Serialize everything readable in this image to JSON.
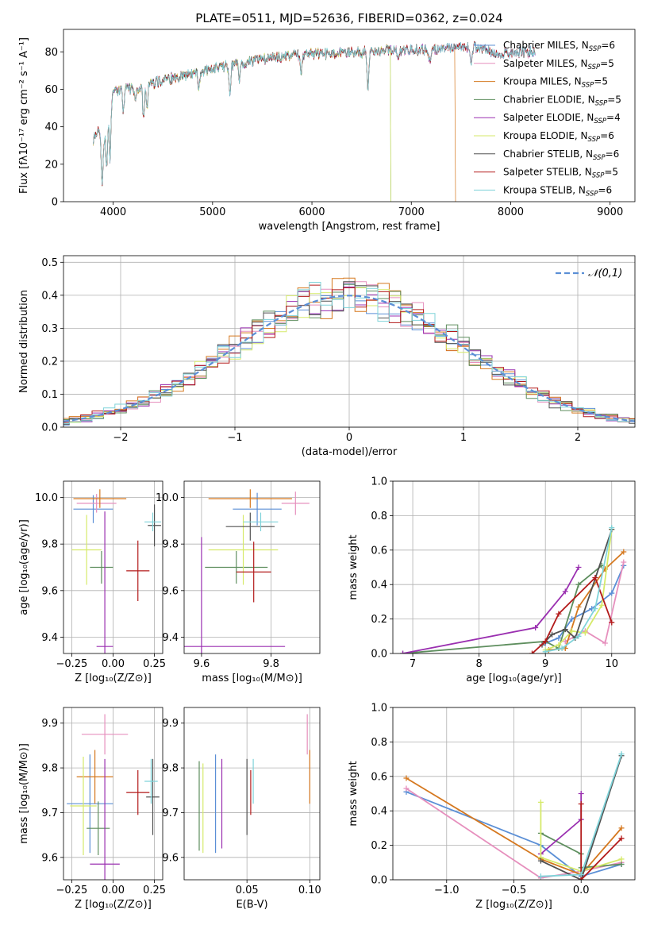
{
  "figure_title": "PLATE=0511, MJD=52636, FIBERID=0362, z=0.024",
  "colors": {
    "Chabrier MILES": "#5b8fd6",
    "Salpeter MILES": "#e68fbd",
    "Kroupa MILES": "#d5781f",
    "Chabrier ELODIE": "#5e8e5e",
    "Salpeter ELODIE": "#9a2fb0",
    "Kroupa ELODIE": "#d6ea6a",
    "Chabrier STELIB": "#505050",
    "Salpeter STELIB": "#b31a1a",
    "Kroupa STELIB": "#7fd3d9"
  },
  "chart_data": [
    {
      "id": "spectrum",
      "type": "line",
      "title": "PLATE=0511, MJD=52636, FIBERID=0362, z=0.024",
      "xlabel": "wavelength [Angstrom, rest frame]",
      "ylabel": "Flux [fλ10⁻¹⁷ erg cm⁻² s⁻¹ A⁻¹]",
      "xlim": [
        3500,
        9250
      ],
      "ylim": [
        0,
        92
      ],
      "xticks": [
        4000,
        5000,
        6000,
        7000,
        8000,
        9000
      ],
      "yticks": [
        0,
        20,
        40,
        60,
        80
      ],
      "grid": false,
      "legend_position": "right",
      "legend": [
        {
          "label": "Chabrier MILES, N",
          "sub": "SSP",
          "n": "=6"
        },
        {
          "label": "Salpeter MILES, N",
          "sub": "SSP",
          "n": "=5"
        },
        {
          "label": "Kroupa MILES, N",
          "sub": "SSP",
          "n": "=5"
        },
        {
          "label": "Chabrier ELODIE, N",
          "sub": "SSP",
          "n": "=5"
        },
        {
          "label": "Salpeter ELODIE, N",
          "sub": "SSP",
          "n": "=4"
        },
        {
          "label": "Kroupa ELODIE, N",
          "sub": "SSP",
          "n": "=6"
        },
        {
          "label": "Chabrier STELIB, N",
          "sub": "SSP",
          "n": "=6"
        },
        {
          "label": "Salpeter STELIB, N",
          "sub": "SSP",
          "n": "=5"
        },
        {
          "label": "Kroupa STELIB, N",
          "sub": "SSP",
          "n": "=6"
        }
      ],
      "continuum": {
        "x": [
          3800,
          3850,
          3900,
          3950,
          4000,
          4100,
          4200,
          4300,
          4400,
          4500,
          4700,
          4900,
          5000,
          5200,
          5400,
          5600,
          5800,
          6000,
          6200,
          6400,
          6600,
          6800,
          7000,
          7200,
          7400,
          7600,
          7800,
          8000,
          8200
        ],
        "y": [
          33,
          38,
          30,
          48,
          58,
          61,
          60,
          62,
          63,
          65,
          67,
          70,
          71,
          73,
          75,
          77,
          78,
          79,
          79,
          80,
          80,
          81,
          81,
          81,
          82,
          83,
          80,
          79,
          80
        ]
      },
      "absorption_lines": {
        "x": [
          3890,
          3934,
          3968,
          4102,
          4226,
          4305,
          4340,
          4861,
          5175,
          5270,
          5890,
          6563,
          6867,
          7186,
          7600
        ],
        "y": [
          10,
          20,
          22,
          48,
          55,
          44,
          50,
          60,
          55,
          66,
          68,
          60,
          75,
          76,
          74
        ]
      }
    },
    {
      "id": "residuals",
      "type": "histogram",
      "xlabel": "(data-model)/error",
      "ylabel": "Normed distribution",
      "xlim": [
        -2.5,
        2.5
      ],
      "ylim": [
        0,
        0.52
      ],
      "xticks": [
        -2,
        -1,
        0,
        1,
        2
      ],
      "yticks": [
        0.0,
        0.1,
        0.2,
        0.3,
        0.4,
        0.5
      ],
      "grid": true,
      "bin_width": 0.1,
      "legend_position": "top-right",
      "reference_curve": {
        "label": "𝒩(0,1)",
        "mean": 0,
        "sigma": 1
      }
    },
    {
      "id": "age-vs-Z",
      "type": "errorbar",
      "xlabel": "Z [log₁₀(Z/Z⊙)]",
      "ylabel": "age  [log₁₀(age/yr)]",
      "xlim": [
        -0.3,
        0.3
      ],
      "ylim": [
        9.33,
        10.07
      ],
      "xticks": [
        -0.25,
        0.0,
        0.25
      ],
      "xticklabels": [
        "−0.25",
        "0.00",
        "0.25"
      ],
      "yticks": [
        9.4,
        9.6,
        9.8,
        10.0
      ],
      "grid": true,
      "points": [
        {
          "model": "Chabrier MILES",
          "x": -0.12,
          "xerr": 0.12,
          "y": 9.95,
          "yerr": 0.06
        },
        {
          "model": "Salpeter MILES",
          "x": -0.1,
          "xerr": 0.12,
          "y": 9.975,
          "yerr": 0.04
        },
        {
          "model": "Kroupa MILES",
          "x": -0.08,
          "xerr": 0.16,
          "y": 9.995,
          "yerr": 0.04
        },
        {
          "model": "Chabrier ELODIE",
          "x": -0.07,
          "xerr": 0.07,
          "y": 9.7,
          "yerr": 0.07
        },
        {
          "model": "Salpeter ELODIE",
          "x": -0.05,
          "xerr": 0.05,
          "y": 9.36,
          "yerr": 0.58
        },
        {
          "model": "Kroupa ELODIE",
          "x": -0.16,
          "xerr": 0.09,
          "y": 9.775,
          "yerr": 0.15
        },
        {
          "model": "Chabrier STELIB",
          "x": 0.25,
          "xerr": 0.04,
          "y": 9.88,
          "yerr": 0.09
        },
        {
          "model": "Salpeter STELIB",
          "x": 0.15,
          "xerr": 0.07,
          "y": 9.685,
          "yerr": 0.13
        },
        {
          "model": "Kroupa STELIB",
          "x": 0.24,
          "xerr": 0.05,
          "y": 9.895,
          "yerr": 0.04
        }
      ]
    },
    {
      "id": "age-vs-mass",
      "type": "errorbar",
      "xlabel": "mass [log₁₀(M/M⊙)]",
      "xlim": [
        9.55,
        9.94
      ],
      "ylim": [
        9.33,
        10.07
      ],
      "xticks": [
        9.6,
        9.8
      ],
      "yticks": [
        9.4,
        9.6,
        9.8,
        10.0
      ],
      "grid": true,
      "points": [
        {
          "model": "Chabrier MILES",
          "x": 9.76,
          "xerr": 0.07,
          "y": 9.95,
          "yerr": 0.07
        },
        {
          "model": "Salpeter MILES",
          "x": 9.87,
          "xerr": 0.04,
          "y": 9.975,
          "yerr": 0.05
        },
        {
          "model": "Kroupa MILES",
          "x": 9.74,
          "xerr": 0.12,
          "y": 9.995,
          "yerr": 0.04
        },
        {
          "model": "Chabrier ELODIE",
          "x": 9.7,
          "xerr": 0.09,
          "y": 9.7,
          "yerr": 0.07
        },
        {
          "model": "Salpeter ELODIE",
          "x": 9.6,
          "xerr": 0.24,
          "y": 9.36,
          "yerr": 0.47
        },
        {
          "model": "Kroupa ELODIE",
          "x": 9.72,
          "xerr": 0.1,
          "y": 9.775,
          "yerr": 0.15
        },
        {
          "model": "Chabrier STELIB",
          "x": 9.74,
          "xerr": 0.07,
          "y": 9.875,
          "yerr": 0.06
        },
        {
          "model": "Salpeter STELIB",
          "x": 9.75,
          "xerr": 0.05,
          "y": 9.68,
          "yerr": 0.13
        },
        {
          "model": "Kroupa STELIB",
          "x": 9.77,
          "xerr": 0.05,
          "y": 9.895,
          "yerr": 0.04
        }
      ]
    },
    {
      "id": "weight-vs-age",
      "type": "line",
      "xlabel": "age  [log₁₀(age/yr)]",
      "ylabel": "mass weight",
      "xlim": [
        6.7,
        10.35
      ],
      "ylim": [
        0,
        1.0
      ],
      "xticks": [
        7,
        8,
        9,
        10
      ],
      "yticks": [
        0.0,
        0.2,
        0.4,
        0.6,
        0.8,
        1.0
      ],
      "grid": true,
      "series": [
        {
          "model": "Chabrier MILES",
          "x": [
            9.0,
            9.2,
            9.4,
            9.7,
            10.0,
            10.18
          ],
          "y": [
            0.06,
            0.09,
            0.2,
            0.26,
            0.35,
            0.51
          ]
        },
        {
          "model": "Salpeter MILES",
          "x": [
            9.3,
            9.6,
            9.9,
            10.18
          ],
          "y": [
            0.07,
            0.13,
            0.06,
            0.53
          ]
        },
        {
          "model": "Kroupa MILES",
          "x": [
            9.05,
            9.3,
            9.5,
            9.9,
            10.18
          ],
          "y": [
            0.02,
            0.03,
            0.27,
            0.49,
            0.59
          ]
        },
        {
          "model": "Chabrier ELODIE",
          "x": [
            6.85,
            9.0,
            9.2,
            9.5,
            9.85
          ],
          "y": [
            0.0,
            0.07,
            0.03,
            0.4,
            0.51
          ]
        },
        {
          "model": "Salpeter ELODIE",
          "x": [
            6.85,
            8.85,
            9.3,
            9.5
          ],
          "y": [
            0.0,
            0.15,
            0.36,
            0.5
          ]
        },
        {
          "model": "Kroupa ELODIE",
          "x": [
            9.0,
            9.2,
            9.4,
            9.6,
            9.85,
            10.0
          ],
          "y": [
            0.02,
            0.05,
            0.13,
            0.12,
            0.28,
            0.72
          ]
        },
        {
          "model": "Chabrier STELIB",
          "x": [
            8.95,
            9.1,
            9.3,
            9.45,
            10.0
          ],
          "y": [
            0.05,
            0.11,
            0.14,
            0.09,
            0.72
          ]
        },
        {
          "model": "Salpeter STELIB",
          "x": [
            8.8,
            9.0,
            9.2,
            9.75,
            10.0
          ],
          "y": [
            0.0,
            0.07,
            0.23,
            0.44,
            0.18
          ]
        },
        {
          "model": "Kroupa STELIB",
          "x": [
            9.0,
            9.25,
            9.5,
            9.75,
            10.0
          ],
          "y": [
            0.01,
            0.03,
            0.1,
            0.26,
            0.73
          ]
        }
      ]
    },
    {
      "id": "mass-vs-Z",
      "type": "errorbar",
      "xlabel": "Z [log₁₀(Z/Z⊙)]",
      "ylabel": "mass [log₁₀(M/M⊙)]",
      "xlim": [
        -0.3,
        0.3
      ],
      "ylim": [
        9.55,
        9.935
      ],
      "xticks": [
        -0.25,
        0.0,
        0.25
      ],
      "xticklabels": [
        "−0.25",
        "0.00",
        "0.25"
      ],
      "yticks": [
        9.6,
        9.7,
        9.8,
        9.9
      ],
      "grid": true,
      "points": [
        {
          "model": "Chabrier MILES",
          "x": -0.14,
          "xerr": 0.14,
          "y": 9.72,
          "yerr": 0.11
        },
        {
          "model": "Salpeter MILES",
          "x": -0.05,
          "xerr": 0.14,
          "y": 9.875,
          "yerr": 0.045
        },
        {
          "model": "Kroupa MILES",
          "x": -0.11,
          "xerr": 0.11,
          "y": 9.78,
          "yerr": 0.06
        },
        {
          "model": "Chabrier ELODIE",
          "x": -0.09,
          "xerr": 0.07,
          "y": 9.665,
          "yerr": 0.06
        },
        {
          "model": "Salpeter ELODIE",
          "x": -0.05,
          "xerr": 0.09,
          "y": 9.585,
          "yerr": 0.235
        },
        {
          "model": "Kroupa ELODIE",
          "x": -0.18,
          "xerr": 0.08,
          "y": 9.715,
          "yerr": 0.11
        },
        {
          "model": "Chabrier STELIB",
          "x": 0.24,
          "xerr": 0.04,
          "y": 9.735,
          "yerr": 0.085
        },
        {
          "model": "Salpeter STELIB",
          "x": 0.15,
          "xerr": 0.07,
          "y": 9.745,
          "yerr": 0.05
        },
        {
          "model": "Kroupa STELIB",
          "x": 0.23,
          "xerr": 0.04,
          "y": 9.77,
          "yerr": 0.05
        }
      ]
    },
    {
      "id": "mass-vs-EBV",
      "type": "errorbar",
      "xlabel": "E(B-V)",
      "xlim": [
        0.0,
        0.108
      ],
      "ylim": [
        9.55,
        9.935
      ],
      "xticks": [
        0.05,
        0.1
      ],
      "xticklabels": [
        "0.05",
        "0.10"
      ],
      "yticks": [
        9.6,
        9.7,
        9.8,
        9.9
      ],
      "grid": true,
      "points": [
        {
          "model": "Chabrier MILES",
          "x": 0.025,
          "y": 9.72,
          "yerr": 0.11
        },
        {
          "model": "Salpeter MILES",
          "x": 0.098,
          "y": 9.875,
          "yerr": 0.045
        },
        {
          "model": "Kroupa MILES",
          "x": 0.1,
          "y": 9.78,
          "yerr": 0.06
        },
        {
          "model": "Chabrier ELODIE",
          "x": 0.012,
          "y": 9.715,
          "yerr": 0.1
        },
        {
          "model": "Salpeter ELODIE",
          "x": 0.03,
          "y": 9.72,
          "yerr": 0.1
        },
        {
          "model": "Kroupa ELODIE",
          "x": 0.015,
          "y": 9.71,
          "yerr": 0.1
        },
        {
          "model": "Chabrier STELIB",
          "x": 0.05,
          "y": 9.735,
          "yerr": 0.085
        },
        {
          "model": "Salpeter STELIB",
          "x": 0.053,
          "y": 9.745,
          "yerr": 0.05
        },
        {
          "model": "Kroupa STELIB",
          "x": 0.055,
          "y": 9.77,
          "yerr": 0.05
        }
      ]
    },
    {
      "id": "weight-vs-Z",
      "type": "line",
      "xlabel": "Z [log₁₀(Z/Z⊙)]",
      "ylabel": "mass weight",
      "xlim": [
        -1.4,
        0.4
      ],
      "ylim": [
        0,
        1.0
      ],
      "xticks": [
        -1.0,
        -0.5,
        0.0
      ],
      "xticklabels": [
        "−1.0",
        "−0.5",
        "0.0"
      ],
      "yticks": [
        0.0,
        0.2,
        0.4,
        0.6,
        0.8,
        1.0
      ],
      "grid": true,
      "series": [
        {
          "model": "Chabrier MILES",
          "x": [
            -1.3,
            -0.3,
            0.0,
            0.3
          ],
          "y": [
            0.51,
            0.2,
            0.02,
            0.09
          ]
        },
        {
          "model": "Salpeter MILES",
          "x": [
            -1.3,
            -0.3,
            0.0,
            0.3
          ],
          "y": [
            0.53,
            0.01,
            0.05,
            0.1
          ]
        },
        {
          "model": "Kroupa MILES",
          "x": [
            -1.3,
            -0.3,
            0.0,
            0.3
          ],
          "y": [
            0.59,
            0.12,
            0.03,
            0.3
          ]
        },
        {
          "model": "Chabrier ELODIE",
          "x": [
            -0.3,
            0.0,
            0.0,
            0.3
          ],
          "y": [
            0.27,
            0.15,
            0.07,
            0.09
          ]
        },
        {
          "model": "Salpeter ELODIE",
          "x": [
            -0.3,
            0.0,
            0.0
          ],
          "y": [
            0.15,
            0.35,
            0.5
          ]
        },
        {
          "model": "Kroupa ELODIE",
          "x": [
            -0.3,
            -0.3,
            0.0,
            0.3
          ],
          "y": [
            0.45,
            0.13,
            0.05,
            0.12
          ]
        },
        {
          "model": "Chabrier STELIB",
          "x": [
            -0.3,
            0.0,
            0.3
          ],
          "y": [
            0.11,
            0.0,
            0.72
          ]
        },
        {
          "model": "Salpeter STELIB",
          "x": [
            0.0,
            0.0,
            0.3
          ],
          "y": [
            0.44,
            0.0,
            0.24
          ]
        },
        {
          "model": "Kroupa STELIB",
          "x": [
            -0.3,
            0.0,
            0.3
          ],
          "y": [
            0.02,
            0.03,
            0.73
          ]
        }
      ]
    }
  ]
}
